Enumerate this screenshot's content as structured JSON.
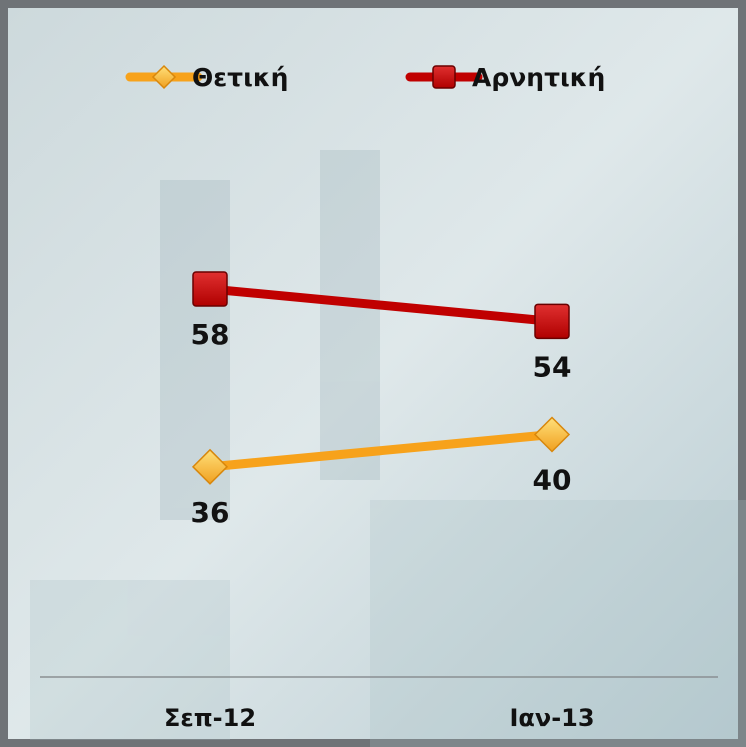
{
  "chart_data": {
    "type": "line",
    "categories": [
      "Σεπ-12",
      "Ιαν-13"
    ],
    "series": [
      {
        "name": "Θετική",
        "color": "#f7a21b",
        "marker": "diamond",
        "values": [
          36,
          40
        ]
      },
      {
        "name": "Αρνητική",
        "color": "#c00000",
        "marker": "square",
        "values": [
          58,
          54
        ]
      }
    ],
    "ylim": [
      10,
      70
    ],
    "legend": "top"
  }
}
